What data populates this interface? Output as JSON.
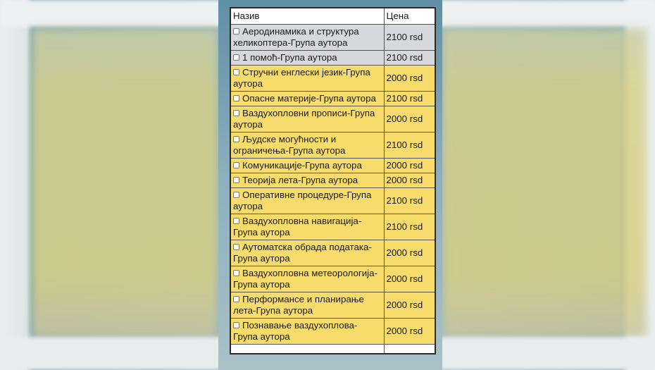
{
  "header": {
    "name": "Назив",
    "price": "Цена"
  },
  "rows": [
    {
      "name": "Аеродинамика и структура хеликоптера-Група аутора",
      "price": "2100 rsd",
      "color": "#d6d8dc"
    },
    {
      "name": "1 помоћ-Група аутора",
      "price": "2100 rsd",
      "color": "#d6d8dc"
    },
    {
      "name": "Стручни енглески језик-Група аутора",
      "price": "2000 rsd",
      "color": "#f8dc6b"
    },
    {
      "name": "Опасне материје-Група аутора",
      "price": "2100 rsd",
      "color": "#f8dc6b"
    },
    {
      "name": "Ваздухопловни прописи-Група аутора",
      "price": "2000 rsd",
      "color": "#f8dc6b"
    },
    {
      "name": "Људске могућности и ограничења-Група аутора",
      "price": "2100 rsd",
      "color": "#f8dc6b"
    },
    {
      "name": "Комуникације-Група аутора",
      "price": "2000 rsd",
      "color": "#f8dc6b"
    },
    {
      "name": "Теорија лета-Група аутора",
      "price": "2000 rsd",
      "color": "#f8dc6b"
    },
    {
      "name": "Оперативне процедуре-Група аутора",
      "price": "2100 rsd",
      "color": "#f8dc6b"
    },
    {
      "name": "Ваздухопловна навигација-Група аутора",
      "price": "2100 rsd",
      "color": "#f8dc6b"
    },
    {
      "name": "Аутоматска обрада података-Група аутора",
      "price": "2000 rsd",
      "color": "#f8dc6b"
    },
    {
      "name": "Ваздухопловна метеорологија-Група аутора",
      "price": "2000 rsd",
      "color": "#f8dc6b"
    },
    {
      "name": "Перформансе и планирање лета-Група аутора",
      "price": "2000 rsd",
      "color": "#f8dc6b"
    },
    {
      "name": "Познавање ваздухоплова-Група аутора",
      "price": "2000 rsd",
      "color": "#f8dc6b"
    }
  ]
}
